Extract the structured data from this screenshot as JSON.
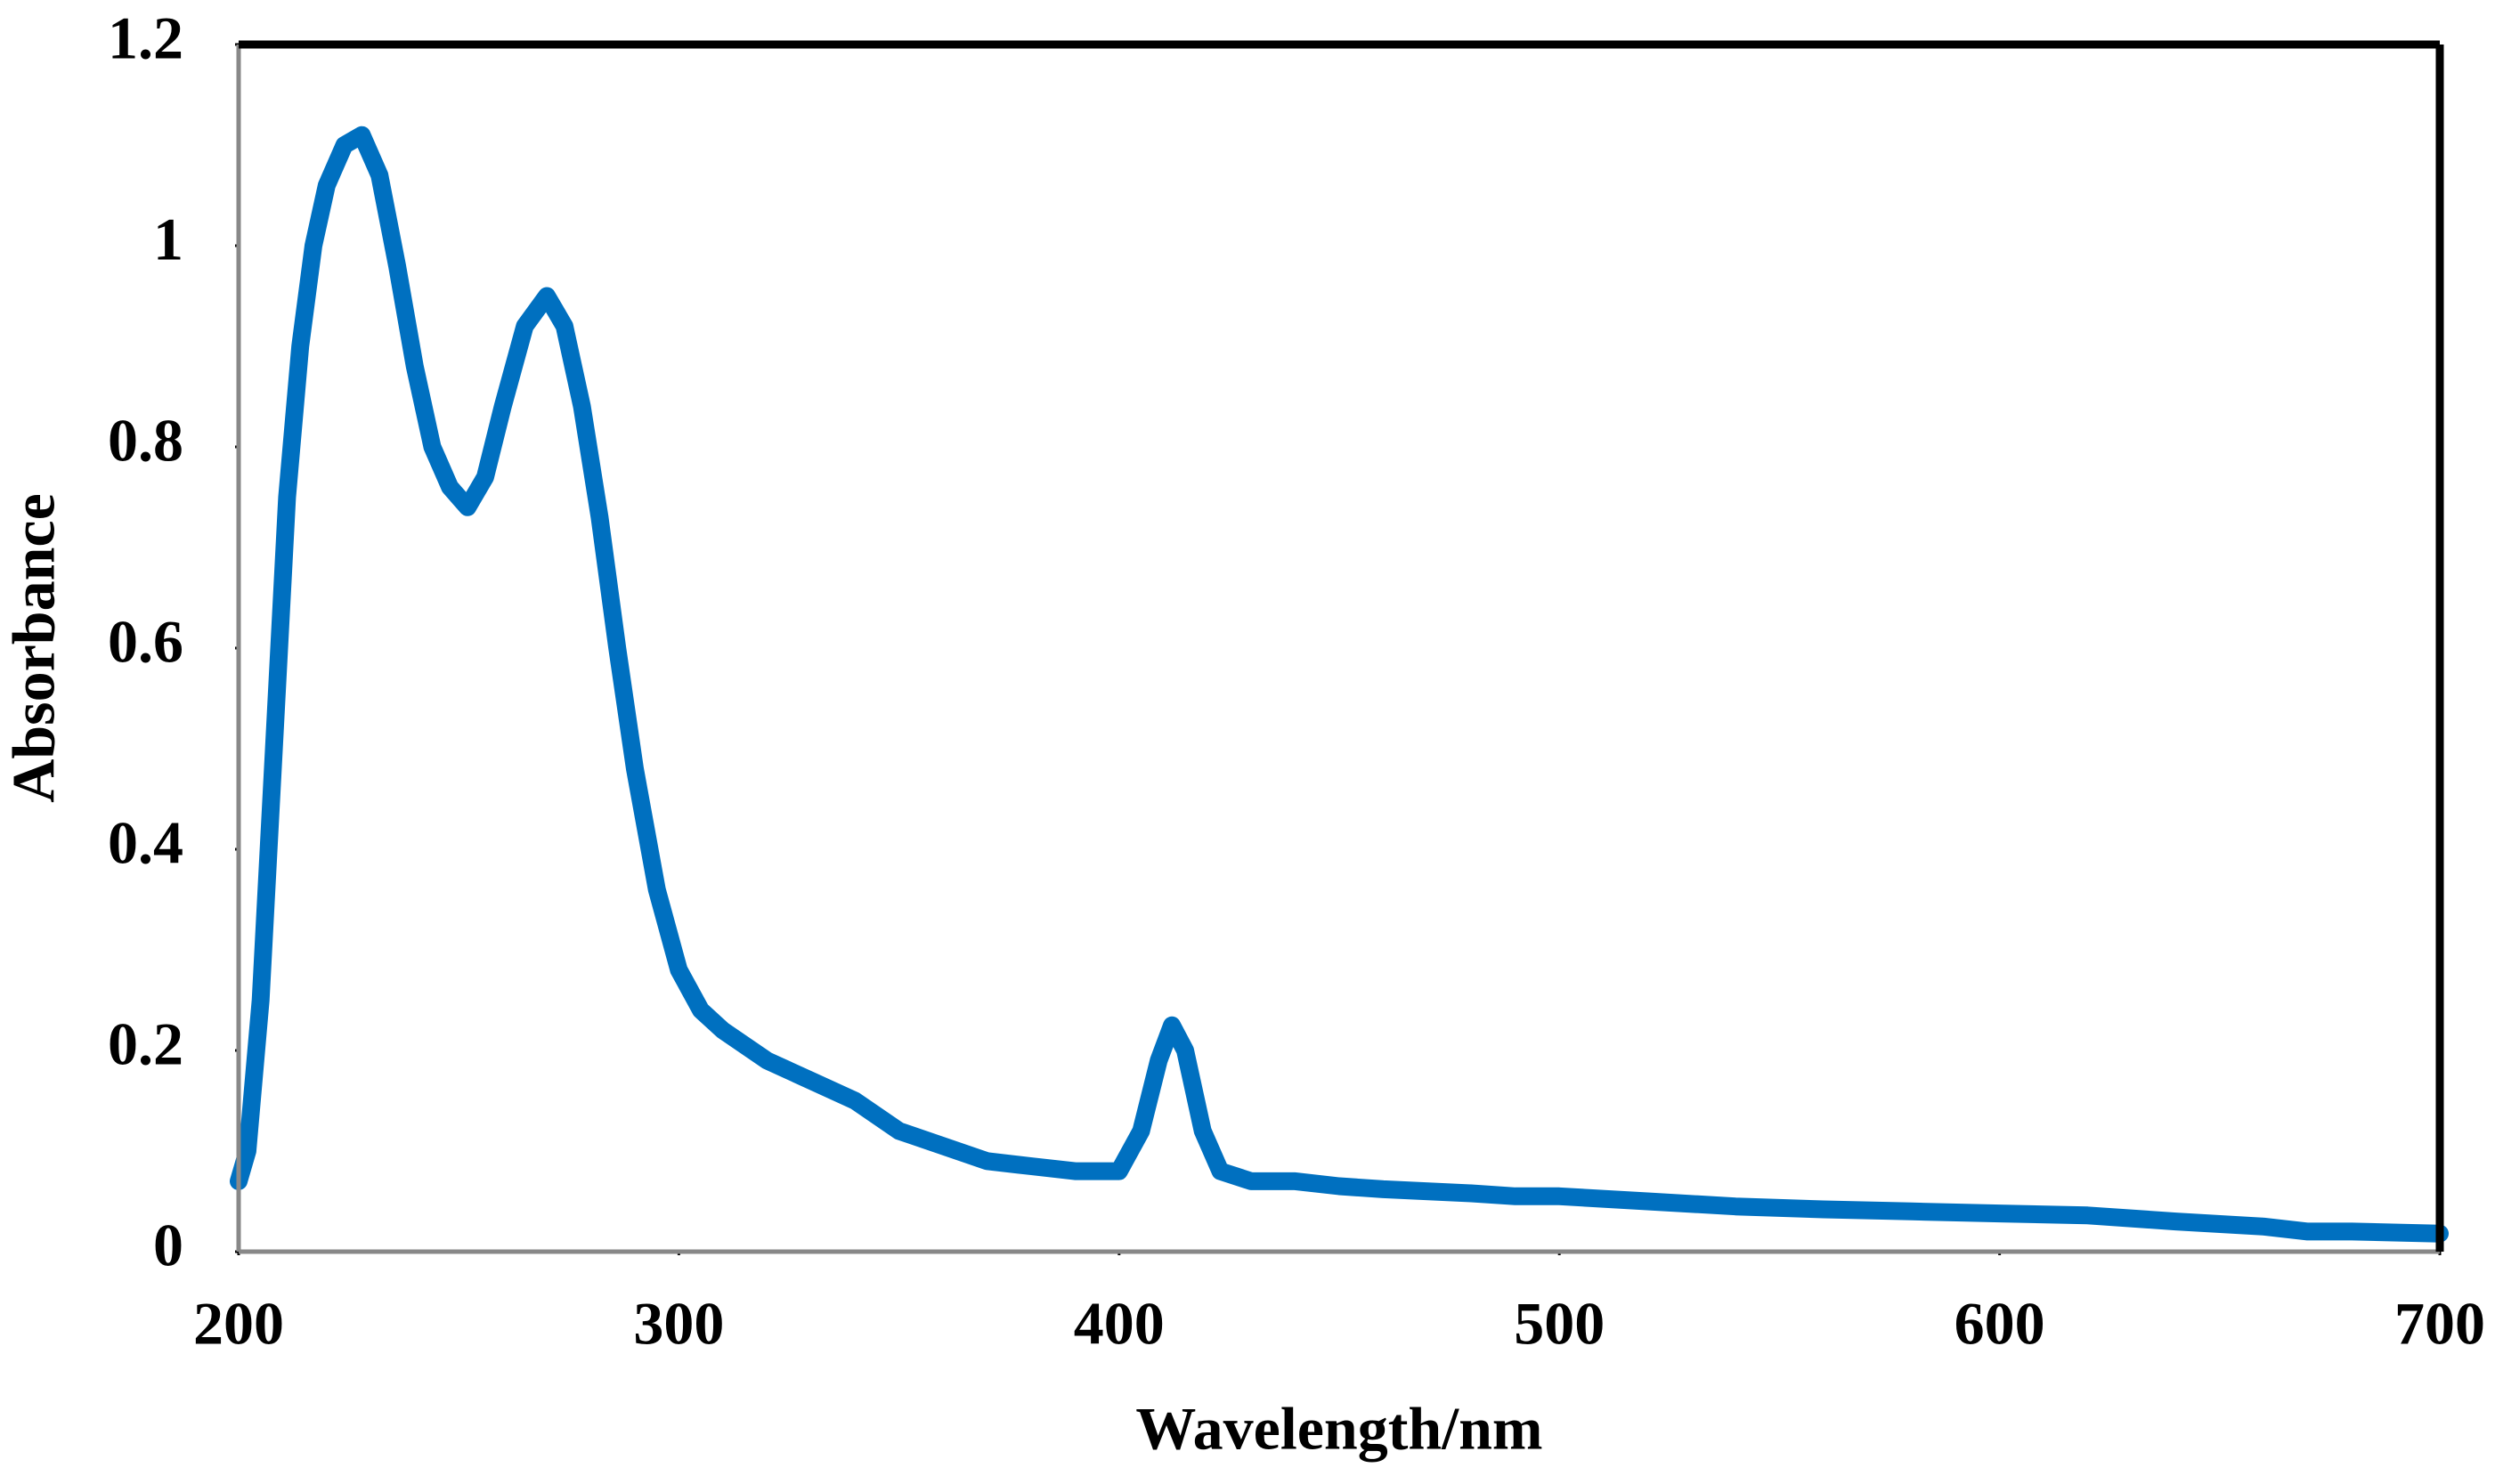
{
  "chart_data": {
    "type": "line",
    "x_label": "Wavelength/nm",
    "y_label": "Absorbance",
    "xlim": [
      200,
      700
    ],
    "xticks": [
      200,
      300,
      400,
      500,
      600,
      700
    ],
    "ylim": [
      0,
      1.2
    ],
    "yticks": [
      0,
      0.2,
      0.4,
      0.6,
      0.8,
      1,
      1.2
    ],
    "grid": false,
    "series": [
      {
        "color": "#0070c0",
        "x": [
          200,
          202,
          205,
          208,
          211,
          214,
          217,
          220,
          224,
          228,
          232,
          236,
          240,
          244,
          248,
          252,
          256,
          260,
          265,
          270,
          274,
          278,
          282,
          286,
          290,
          295,
          300,
          305,
          310,
          320,
          330,
          340,
          350,
          360,
          370,
          380,
          390,
          400,
          405,
          409,
          412,
          415,
          419,
          423,
          430,
          440,
          450,
          460,
          480,
          490,
          500,
          520,
          540,
          560,
          580,
          600,
          620,
          640,
          660,
          670,
          680,
          700
        ],
        "values": [
          0.07,
          0.1,
          0.25,
          0.5,
          0.75,
          0.9,
          1.0,
          1.06,
          1.1,
          1.11,
          1.07,
          0.98,
          0.88,
          0.8,
          0.76,
          0.74,
          0.77,
          0.84,
          0.92,
          0.95,
          0.92,
          0.84,
          0.73,
          0.6,
          0.48,
          0.36,
          0.28,
          0.24,
          0.22,
          0.19,
          0.17,
          0.15,
          0.12,
          0.105,
          0.09,
          0.085,
          0.08,
          0.08,
          0.12,
          0.19,
          0.225,
          0.2,
          0.12,
          0.08,
          0.07,
          0.07,
          0.065,
          0.062,
          0.058,
          0.055,
          0.055,
          0.05,
          0.045,
          0.042,
          0.04,
          0.038,
          0.036,
          0.03,
          0.025,
          0.02,
          0.02,
          0.018
        ]
      }
    ]
  }
}
